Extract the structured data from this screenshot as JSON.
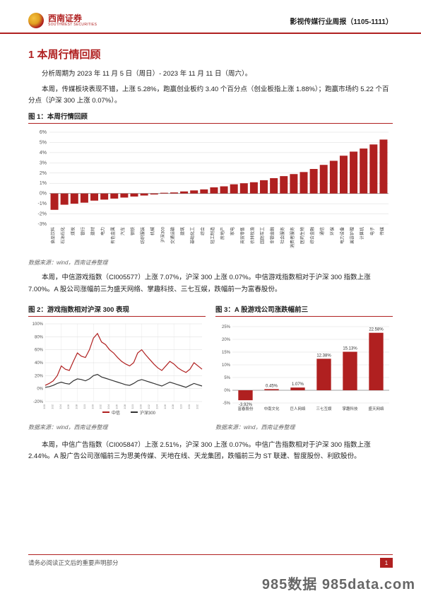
{
  "header": {
    "company_cn": "西南证券",
    "company_en": "SOUTHWEST SECURITIES",
    "doc_meta": "影视传媒行业周报（1105-1111）"
  },
  "section_title": "1 本周行情回顾",
  "para1": "分析周期为 2023 年 11 月 5 日（周日）- 2023 年 11 月 11 日（周六）。",
  "para2": "本周，传媒板块表现不错，上涨 5.28%，跑赢创业板约 3.40 个百分点（创业板指上涨 1.88%）；跑赢市场约 5.22 个百分点（沪深 300 上涨 0.07%）。",
  "fig1": {
    "title": "图 1：本周行情回顾",
    "source": "数据来源：wind，西南证券整理",
    "type": "bar",
    "ylim": [
      -3,
      6
    ],
    "ytick_step": 1,
    "bar_color": "#b02020",
    "grid_color": "#d9d9d9",
    "background_color": "#ffffff",
    "axis_fontsize": 7,
    "label_fontsize": 6,
    "categories": [
      "食品饮料",
      "石油石化",
      "煤炭",
      "银行",
      "建材",
      "电力",
      "有色金属",
      "汽车",
      "钢铁",
      "纺织服装",
      "机械",
      "沪深300",
      "交通运输",
      "建筑",
      "基础化工",
      "综合",
      "轻工制造",
      "房地产",
      "家电",
      "商贸零售",
      "农林牧渔",
      "国防军工",
      "非银金融",
      "社会服务",
      "消费者服务",
      "医药生物",
      "综合金融",
      "通信",
      "环保",
      "电力设备",
      "美容护理",
      "计算机",
      "电子",
      "传媒"
    ],
    "values": [
      -1.6,
      -1.1,
      -1.0,
      -0.9,
      -0.7,
      -0.6,
      -0.5,
      -0.4,
      -0.3,
      -0.2,
      -0.1,
      0.07,
      0.1,
      0.2,
      0.3,
      0.4,
      0.6,
      0.7,
      0.9,
      1.0,
      1.1,
      1.3,
      1.5,
      1.7,
      1.9,
      2.1,
      2.4,
      2.8,
      3.2,
      3.7,
      4.1,
      4.4,
      4.8,
      5.28
    ]
  },
  "para3": "本周，中信游戏指数（CI005577）上涨 7.07%，沪深 300 上涨 0.07%。中信游戏指数相对于沪深 300 指数上涨 7.00%。A 股公司涨幅前三为盛天网络、掌趣科技、三七互娱，跌幅前一为富春股份。",
  "fig2": {
    "title": "图 2：游戏指数相对沪深 300 表现",
    "source": "数据来源：wind，西南证券整理",
    "type": "line",
    "ylim": [
      -20,
      100
    ],
    "ytick_step": 20,
    "series1_color": "#b02020",
    "series2_color": "#333333",
    "grid_color": "#d9d9d9",
    "axis_fontsize": 6,
    "legend": [
      "中信",
      "沪深300"
    ],
    "series1": [
      5,
      8,
      12,
      20,
      35,
      30,
      28,
      42,
      55,
      50,
      48,
      60,
      78,
      85,
      72,
      68,
      60,
      55,
      48,
      42,
      38,
      35,
      40,
      55,
      60,
      52,
      45,
      38,
      32,
      28,
      35,
      42,
      38,
      32,
      28,
      25,
      30,
      40,
      35,
      30
    ],
    "series2": [
      2,
      3,
      5,
      8,
      10,
      8,
      7,
      12,
      15,
      14,
      12,
      15,
      20,
      22,
      18,
      16,
      14,
      12,
      10,
      8,
      6,
      5,
      8,
      12,
      14,
      12,
      10,
      8,
      6,
      4,
      7,
      10,
      8,
      6,
      4,
      2,
      5,
      8,
      6,
      4
    ]
  },
  "fig3": {
    "title": "图 3：A 股游戏公司涨跌幅前三",
    "source": "数据来源：wind，西南证券整理",
    "type": "bar",
    "ylim": [
      -5,
      25
    ],
    "ytick_step": 5,
    "bar_color": "#b02020",
    "grid_color": "#d9d9d9",
    "axis_fontsize": 6,
    "categories": [
      "富春股份",
      "中南文化",
      "巨人网络",
      "三七互娱",
      "掌趣科技",
      "盛天网络"
    ],
    "values": [
      -3.92,
      0.45,
      1.07,
      12.38,
      15.13,
      22.58
    ],
    "value_labels": [
      "-3.92%",
      "0.45%",
      "1.07%",
      "12.38%",
      "15.13%",
      "22.58%"
    ]
  },
  "para4": "本周，中信广告指数（CI005847）上涨 2.51%，沪深 300 上涨 0.07%。中信广告指数相对于沪深 300 指数上涨 2.44%。A 股广告公司涨幅前三为思美传媒、天地在线、天龙集团，跌幅前三为 ST 联建、智度股份、利欧股份。",
  "footer": {
    "disclaimer": "请务必阅读正文后的重要声明部分",
    "page": "1"
  },
  "watermark": "985数据 985data.com"
}
